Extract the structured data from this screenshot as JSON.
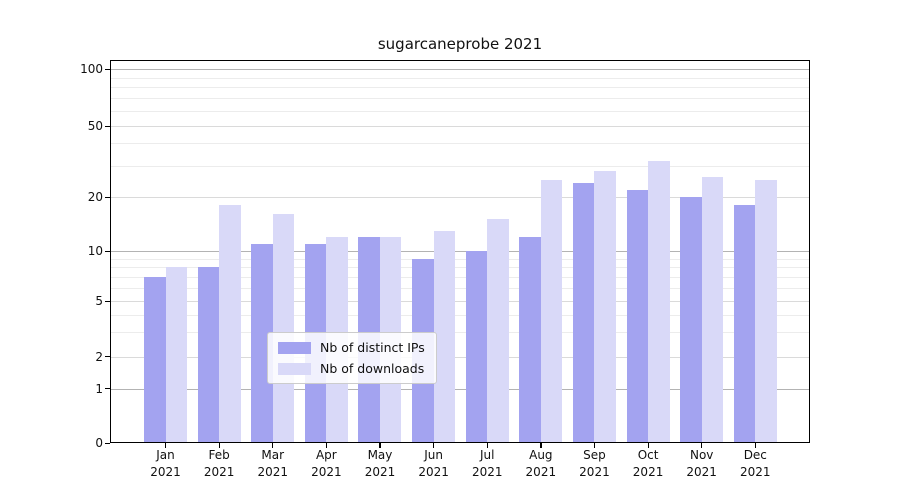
{
  "chart_data": {
    "type": "bar",
    "title": "sugarcaneprobe 2021",
    "categories": [
      "Jan\n2021",
      "Feb\n2021",
      "Mar\n2021",
      "Apr\n2021",
      "May\n2021",
      "Jun\n2021",
      "Jul\n2021",
      "Aug\n2021",
      "Sep\n2021",
      "Oct\n2021",
      "Nov\n2021",
      "Dec\n2021"
    ],
    "series": [
      {
        "name": "Nb of distinct IPs",
        "color": "#a3a3f0",
        "values": [
          7,
          8,
          11,
          11,
          12,
          9,
          10,
          12,
          24,
          22,
          20,
          18
        ]
      },
      {
        "name": "Nb of downloads",
        "color": "#d9d9f8",
        "values": [
          8,
          18,
          16,
          12,
          12,
          13,
          15,
          25,
          28,
          32,
          26,
          25
        ]
      }
    ],
    "xlabel": "",
    "ylabel": "",
    "yscale": "symlog",
    "yticks": [
      0,
      1,
      2,
      5,
      10,
      20,
      50,
      100
    ],
    "ylim": [
      0,
      110
    ],
    "grid": true,
    "legend_position": "lower center"
  },
  "colors": {
    "bar_dark": "#a3a3f0",
    "bar_light": "#d9d9f8",
    "grid_strong": "#b3b3b3",
    "grid_medium": "#dadada",
    "grid_faint": "#ececec",
    "axis": "#000000",
    "legend_border": "#cccccc",
    "background": "#ffffff"
  }
}
